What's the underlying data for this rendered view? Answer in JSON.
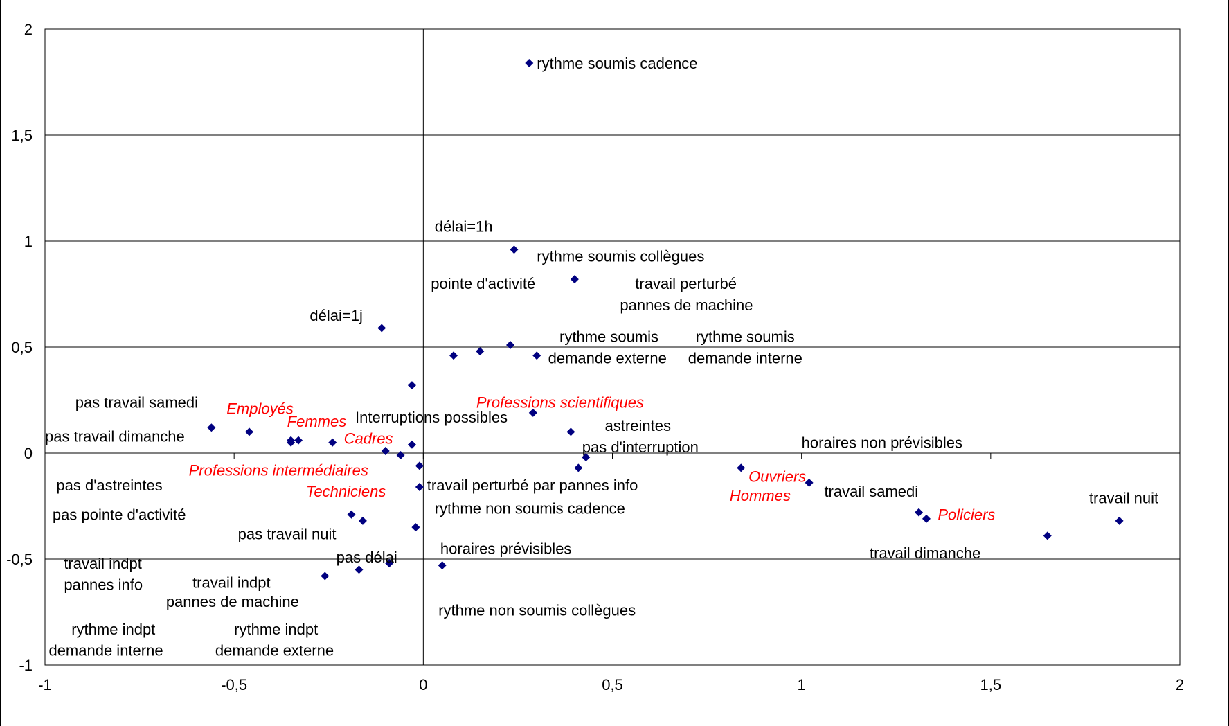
{
  "chart_data": {
    "type": "scatter",
    "title": "",
    "xlabel": "",
    "ylabel": "",
    "xlim": [
      -1,
      2
    ],
    "ylim": [
      -1,
      2
    ],
    "grid": "horizontal",
    "x_ticks": [
      "-1",
      "-0,5",
      "0",
      "0,5",
      "1",
      "1,5",
      "2"
    ],
    "x_tick_values": [
      -1,
      -0.5,
      0,
      0.5,
      1,
      1.5,
      2
    ],
    "y_ticks": [
      "-1",
      "-0,5",
      "0",
      "0,5",
      "1",
      "1,5",
      "2"
    ],
    "y_tick_values": [
      -1,
      -0.5,
      0,
      0.5,
      1,
      1.5,
      2
    ],
    "points": [
      {
        "x": 0.28,
        "y": 1.84
      },
      {
        "x": 0.24,
        "y": 0.96
      },
      {
        "x": 0.4,
        "y": 0.82
      },
      {
        "x": -0.11,
        "y": 0.59
      },
      {
        "x": 0.23,
        "y": 0.51
      },
      {
        "x": 0.15,
        "y": 0.48
      },
      {
        "x": 0.08,
        "y": 0.46
      },
      {
        "x": 0.3,
        "y": 0.46
      },
      {
        "x": -0.03,
        "y": 0.32
      },
      {
        "x": 0.29,
        "y": 0.19
      },
      {
        "x": 0.39,
        "y": 0.1
      },
      {
        "x": -0.56,
        "y": 0.12
      },
      {
        "x": -0.46,
        "y": 0.1
      },
      {
        "x": -0.35,
        "y": 0.06
      },
      {
        "x": -0.35,
        "y": 0.05
      },
      {
        "x": -0.33,
        "y": 0.06
      },
      {
        "x": -0.24,
        "y": 0.05
      },
      {
        "x": -0.03,
        "y": 0.04
      },
      {
        "x": -0.1,
        "y": 0.01
      },
      {
        "x": -0.06,
        "y": -0.01
      },
      {
        "x": 0.43,
        "y": -0.02
      },
      {
        "x": -0.01,
        "y": -0.06
      },
      {
        "x": 0.41,
        "y": -0.07
      },
      {
        "x": 0.84,
        "y": -0.07
      },
      {
        "x": -0.01,
        "y": -0.16
      },
      {
        "x": 1.02,
        "y": -0.14
      },
      {
        "x": 1.31,
        "y": -0.28
      },
      {
        "x": 1.33,
        "y": -0.31
      },
      {
        "x": 1.84,
        "y": -0.32
      },
      {
        "x": 1.65,
        "y": -0.39
      },
      {
        "x": -0.19,
        "y": -0.29
      },
      {
        "x": -0.16,
        "y": -0.32
      },
      {
        "x": -0.02,
        "y": -0.35
      },
      {
        "x": -0.09,
        "y": -0.52
      },
      {
        "x": 0.05,
        "y": -0.53
      },
      {
        "x": -0.17,
        "y": -0.55
      },
      {
        "x": -0.26,
        "y": -0.58
      }
    ],
    "labels": [
      {
        "text": "rythme soumis cadence",
        "x": 0.3,
        "y": 1.84,
        "style": "normal"
      },
      {
        "text": "délai=1h",
        "x": 0.03,
        "y": 1.07,
        "style": "normal"
      },
      {
        "text": "rythme soumis collègues",
        "x": 0.3,
        "y": 0.93,
        "style": "normal"
      },
      {
        "text": "pointe d'activité",
        "x": 0.02,
        "y": 0.8,
        "style": "normal"
      },
      {
        "text": "travail perturbé",
        "x": 0.56,
        "y": 0.8,
        "style": "normal"
      },
      {
        "text": "pannes de machine",
        "x": 0.52,
        "y": 0.7,
        "style": "normal"
      },
      {
        "text": "délai=1j",
        "x": -0.3,
        "y": 0.65,
        "style": "normal"
      },
      {
        "text": "rythme soumis",
        "x": 0.36,
        "y": 0.55,
        "style": "normal"
      },
      {
        "text": "rythme soumis",
        "x": 0.72,
        "y": 0.55,
        "style": "normal"
      },
      {
        "text": "demande externe",
        "x": 0.33,
        "y": 0.45,
        "style": "normal"
      },
      {
        "text": "demande interne",
        "x": 0.7,
        "y": 0.45,
        "style": "normal"
      },
      {
        "text": "pas travail samedi",
        "x": -0.92,
        "y": 0.24,
        "style": "normal"
      },
      {
        "text": "Employés",
        "x": -0.52,
        "y": 0.21,
        "style": "italic-red"
      },
      {
        "text": "Professions scientifiques",
        "x": 0.14,
        "y": 0.24,
        "style": "italic-red"
      },
      {
        "text": "Femmes",
        "x": -0.36,
        "y": 0.15,
        "style": "italic-red"
      },
      {
        "text": "Interruptions possibles",
        "x": -0.18,
        "y": 0.17,
        "style": "normal"
      },
      {
        "text": "astreintes",
        "x": 0.48,
        "y": 0.13,
        "style": "normal"
      },
      {
        "text": "pas travail dimanche",
        "x": -1.0,
        "y": 0.08,
        "style": "normal"
      },
      {
        "text": "Cadres",
        "x": -0.21,
        "y": 0.07,
        "style": "italic-red"
      },
      {
        "text": "pas d'interruption",
        "x": 0.42,
        "y": 0.03,
        "style": "normal"
      },
      {
        "text": "horaires non prévisibles",
        "x": 1.0,
        "y": 0.05,
        "style": "normal"
      },
      {
        "text": "Professions intermédiaires",
        "x": -0.62,
        "y": -0.08,
        "style": "italic-red"
      },
      {
        "text": "pas d'astreintes",
        "x": -0.97,
        "y": -0.15,
        "style": "normal"
      },
      {
        "text": "travail perturbé par pannes info",
        "x": 0.01,
        "y": -0.15,
        "style": "normal"
      },
      {
        "text": "Ouvriers",
        "x": 0.86,
        "y": -0.11,
        "style": "italic-red"
      },
      {
        "text": "Techniciens",
        "x": -0.31,
        "y": -0.18,
        "style": "italic-red"
      },
      {
        "text": "travail samedi",
        "x": 1.06,
        "y": -0.18,
        "style": "normal"
      },
      {
        "text": "Hommes",
        "x": 0.81,
        "y": -0.2,
        "style": "italic-red"
      },
      {
        "text": "travail nuit",
        "x": 1.76,
        "y": -0.21,
        "style": "normal"
      },
      {
        "text": "rythme non soumis cadence",
        "x": 0.03,
        "y": -0.26,
        "style": "normal"
      },
      {
        "text": "Policiers",
        "x": 1.36,
        "y": -0.29,
        "style": "italic-red"
      },
      {
        "text": "pas pointe d'activité",
        "x": -0.98,
        "y": -0.29,
        "style": "normal"
      },
      {
        "text": "pas travail nuit",
        "x": -0.49,
        "y": -0.38,
        "style": "normal"
      },
      {
        "text": "horaires prévisibles",
        "x": 0.045,
        "y": -0.45,
        "style": "normal"
      },
      {
        "text": "pas délai",
        "x": -0.23,
        "y": -0.49,
        "style": "normal"
      },
      {
        "text": "travail dimanche",
        "x": 1.18,
        "y": -0.47,
        "style": "normal"
      },
      {
        "text": "travail indpt",
        "x": -0.95,
        "y": -0.52,
        "style": "normal"
      },
      {
        "text": "travail indpt",
        "x": -0.61,
        "y": -0.61,
        "style": "normal"
      },
      {
        "text": "pannes info",
        "x": -0.95,
        "y": -0.62,
        "style": "normal"
      },
      {
        "text": "pannes de machine",
        "x": -0.68,
        "y": -0.7,
        "style": "normal"
      },
      {
        "text": "rythme non soumis collègues",
        "x": 0.04,
        "y": -0.74,
        "style": "normal"
      },
      {
        "text": "rythme indpt",
        "x": -0.93,
        "y": -0.83,
        "style": "normal"
      },
      {
        "text": "rythme indpt",
        "x": -0.5,
        "y": -0.83,
        "style": "normal"
      },
      {
        "text": "demande interne",
        "x": -0.99,
        "y": -0.93,
        "style": "normal"
      },
      {
        "text": "demande externe",
        "x": -0.55,
        "y": -0.93,
        "style": "normal"
      }
    ],
    "colors": {
      "marker": "#000080",
      "label": "#000000",
      "highlight_label": "#ff0000"
    }
  }
}
